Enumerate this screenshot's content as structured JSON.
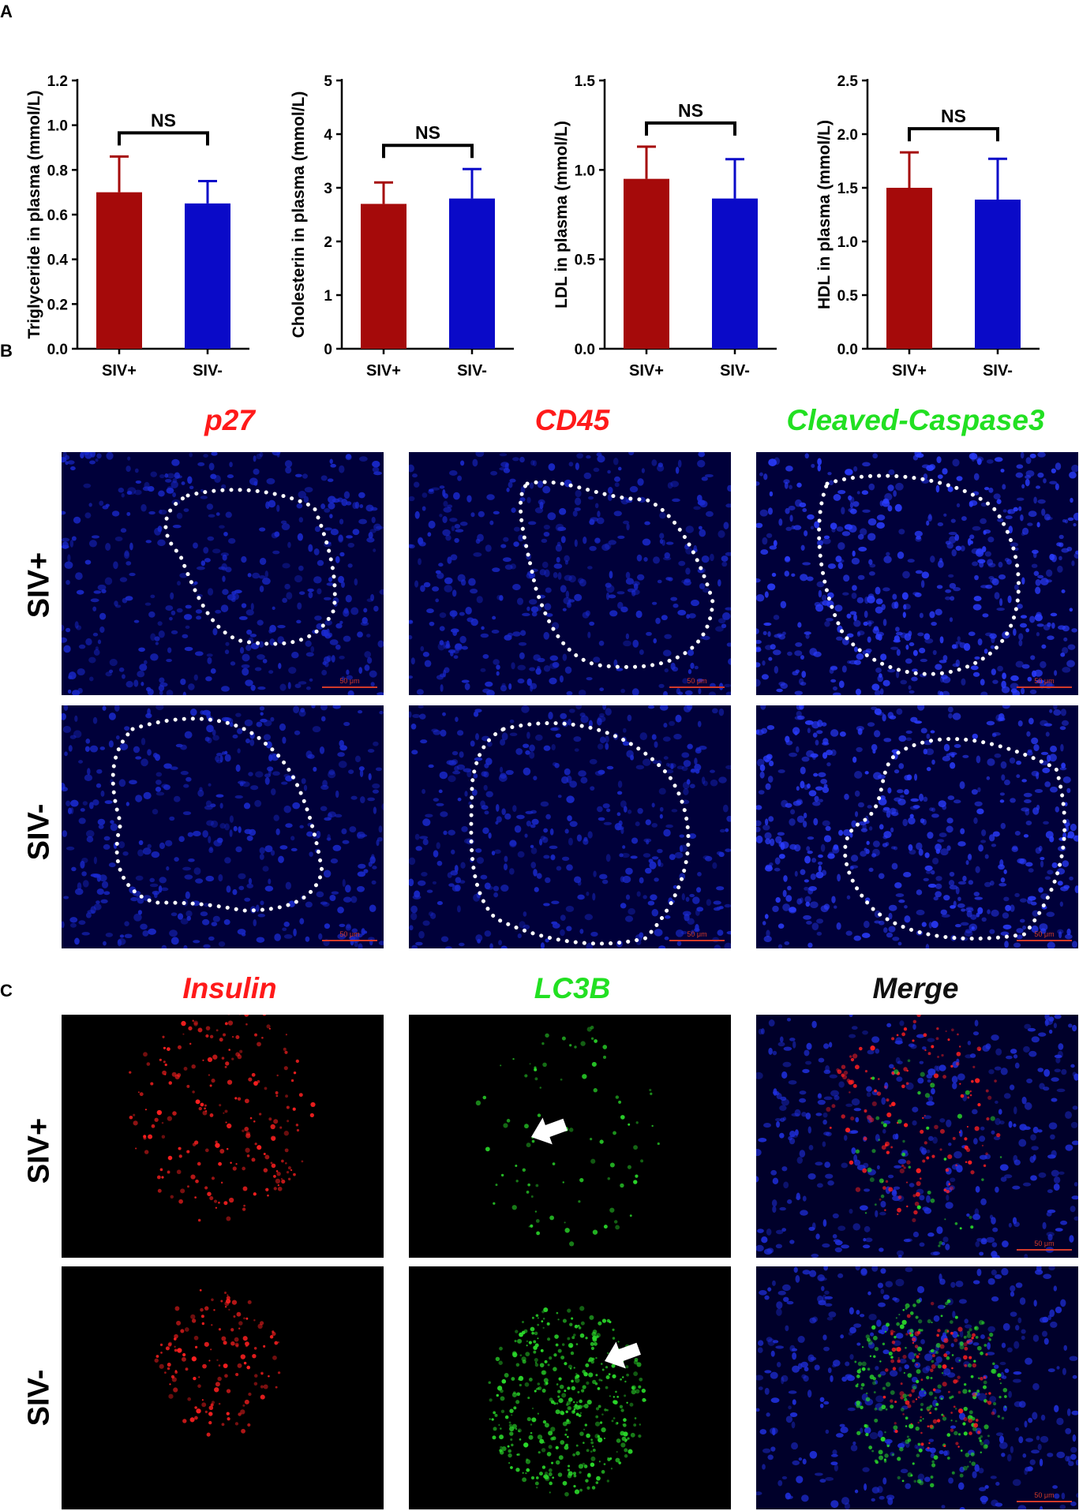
{
  "panels": {
    "a": "A",
    "b": "B",
    "c": "C"
  },
  "chart_data": [
    {
      "type": "bar",
      "categories": [
        "SIV+",
        "SIV-"
      ],
      "values": [
        0.7,
        0.65
      ],
      "errors": [
        0.16,
        0.1
      ],
      "ylabel": "Triglyceride in plasma (mmol/L)",
      "ylim": [
        0,
        1.2
      ],
      "yticks": [
        "0.0",
        "0.2",
        "0.4",
        "0.6",
        "0.8",
        "1.0",
        "1.2"
      ],
      "annotation": "NS",
      "colors": [
        "#a50a0a",
        "#0a0ac8"
      ]
    },
    {
      "type": "bar",
      "categories": [
        "SIV+",
        "SIV-"
      ],
      "values": [
        2.7,
        2.8
      ],
      "errors": [
        0.4,
        0.55
      ],
      "ylabel": "Cholesterin in plasma (mmol/L)",
      "ylim": [
        0,
        5
      ],
      "yticks": [
        "0",
        "1",
        "2",
        "3",
        "4",
        "5"
      ],
      "annotation": "NS",
      "colors": [
        "#a50a0a",
        "#0a0ac8"
      ]
    },
    {
      "type": "bar",
      "categories": [
        "SIV+",
        "SIV-"
      ],
      "values": [
        0.95,
        0.84
      ],
      "errors": [
        0.18,
        0.22
      ],
      "ylabel": "LDL in plasma (mmol/L)",
      "ylim": [
        0,
        1.5
      ],
      "yticks": [
        "0.0",
        "0.5",
        "1.0",
        "1.5"
      ],
      "annotation": "NS",
      "colors": [
        "#a50a0a",
        "#0a0ac8"
      ]
    },
    {
      "type": "bar",
      "categories": [
        "SIV+",
        "SIV-"
      ],
      "values": [
        1.5,
        1.39
      ],
      "errors": [
        0.33,
        0.38
      ],
      "ylabel": "HDL in plasma (mmol/L)",
      "ylim": [
        0,
        2.5
      ],
      "yticks": [
        "0.0",
        "0.5",
        "1.0",
        "1.5",
        "2.0",
        "2.5"
      ],
      "annotation": "NS",
      "colors": [
        "#a50a0a",
        "#0a0ac8"
      ]
    }
  ],
  "panel_b": {
    "columns": [
      "p27",
      "CD45",
      "Cleaved-Caspase3"
    ],
    "column_colors": [
      "#ff1a1a",
      "#ff1a1a",
      "#22e022"
    ],
    "rows": [
      "SIV+",
      "SIV-"
    ],
    "scale_bar": "50 μm"
  },
  "panel_c": {
    "columns": [
      "Insulin",
      "LC3B",
      "Merge"
    ],
    "column_colors": [
      "#ff1a1a",
      "#22e022",
      "#111111"
    ],
    "rows": [
      "SIV+",
      "SIV-"
    ],
    "scale_bar": "50 μm"
  }
}
